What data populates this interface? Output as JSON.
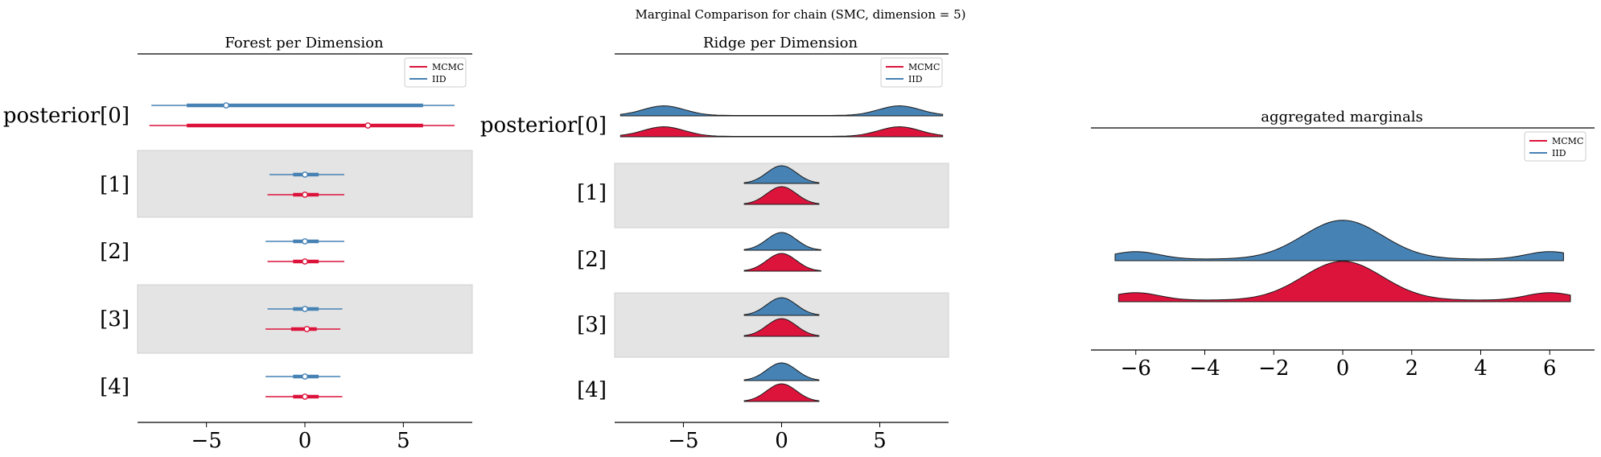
{
  "figure_title": "Marginal Comparison for chain (SMC, dimension = 5)",
  "colors": {
    "mcmc": "#dc143c",
    "iid": "#4682b4",
    "band": "#e4e4e4"
  },
  "chart_data": [
    {
      "type": "forest",
      "title": "Forest per Dimension",
      "xlim": [
        -8.5,
        8.5
      ],
      "xticks": [
        -5,
        0,
        5
      ],
      "row_labels": [
        "posterior[0]",
        "[1]",
        "[2]",
        "[3]",
        "[4]"
      ],
      "legend": {
        "position": "top-right",
        "entries": [
          "MCMC",
          "IID"
        ]
      },
      "series": [
        {
          "name": "MCMC",
          "rows": [
            {
              "hdi94": [
                -7.9,
                7.6
              ],
              "hdi50": [
                -6.0,
                6.0
              ],
              "point": 3.2
            },
            {
              "hdi94": [
                -1.9,
                2.0
              ],
              "hdi50": [
                -0.6,
                0.7
              ],
              "point": 0.0
            },
            {
              "hdi94": [
                -1.9,
                2.0
              ],
              "hdi50": [
                -0.6,
                0.7
              ],
              "point": 0.0
            },
            {
              "hdi94": [
                -2.0,
                1.8
              ],
              "hdi50": [
                -0.7,
                0.6
              ],
              "point": 0.1
            },
            {
              "hdi94": [
                -2.0,
                1.9
              ],
              "hdi50": [
                -0.6,
                0.7
              ],
              "point": 0.0
            }
          ]
        },
        {
          "name": "IID",
          "rows": [
            {
              "hdi94": [
                -7.8,
                7.6
              ],
              "hdi50": [
                -6.0,
                6.0
              ],
              "point": -4.0
            },
            {
              "hdi94": [
                -1.8,
                2.0
              ],
              "hdi50": [
                -0.6,
                0.7
              ],
              "point": 0.0
            },
            {
              "hdi94": [
                -2.0,
                2.0
              ],
              "hdi50": [
                -0.6,
                0.7
              ],
              "point": 0.0
            },
            {
              "hdi94": [
                -1.9,
                1.9
              ],
              "hdi50": [
                -0.6,
                0.7
              ],
              "point": 0.0
            },
            {
              "hdi94": [
                -2.0,
                1.8
              ],
              "hdi50": [
                -0.6,
                0.7
              ],
              "point": 0.0
            }
          ]
        }
      ]
    },
    {
      "type": "ridge",
      "title": "Ridge per Dimension",
      "xlim": [
        -8.5,
        8.5
      ],
      "xticks": [
        -5,
        0,
        5
      ],
      "row_labels": [
        "posterior[0]",
        "[1]",
        "[2]",
        "[3]",
        "[4]"
      ],
      "legend": {
        "position": "top-right",
        "entries": [
          "MCMC",
          "IID"
        ]
      },
      "rows": [
        {
          "kind": "bimodal",
          "modes": [
            -6,
            6
          ]
        },
        {
          "kind": "normal",
          "range": [
            -1.9,
            1.9
          ]
        },
        {
          "kind": "normal",
          "range": [
            -1.9,
            2.0
          ]
        },
        {
          "kind": "normal",
          "range": [
            -1.9,
            1.9
          ]
        },
        {
          "kind": "normal",
          "range": [
            -1.9,
            1.9
          ]
        }
      ]
    },
    {
      "type": "area",
      "title": "aggregated marginals",
      "xlim": [
        -7.3,
        7.3
      ],
      "xticks": [
        -6,
        -4,
        -2,
        0,
        2,
        4,
        6
      ],
      "legend": {
        "position": "top-right",
        "entries": [
          "MCMC",
          "IID"
        ]
      },
      "series": [
        {
          "name": "IID",
          "x_range": [
            -6.6,
            6.4
          ],
          "peak_at": 0.0,
          "side_modes": [
            -6,
            6
          ]
        },
        {
          "name": "MCMC",
          "x_range": [
            -6.5,
            6.6
          ],
          "peak_at": 0.0,
          "side_modes": [
            -6,
            6
          ]
        }
      ]
    }
  ]
}
